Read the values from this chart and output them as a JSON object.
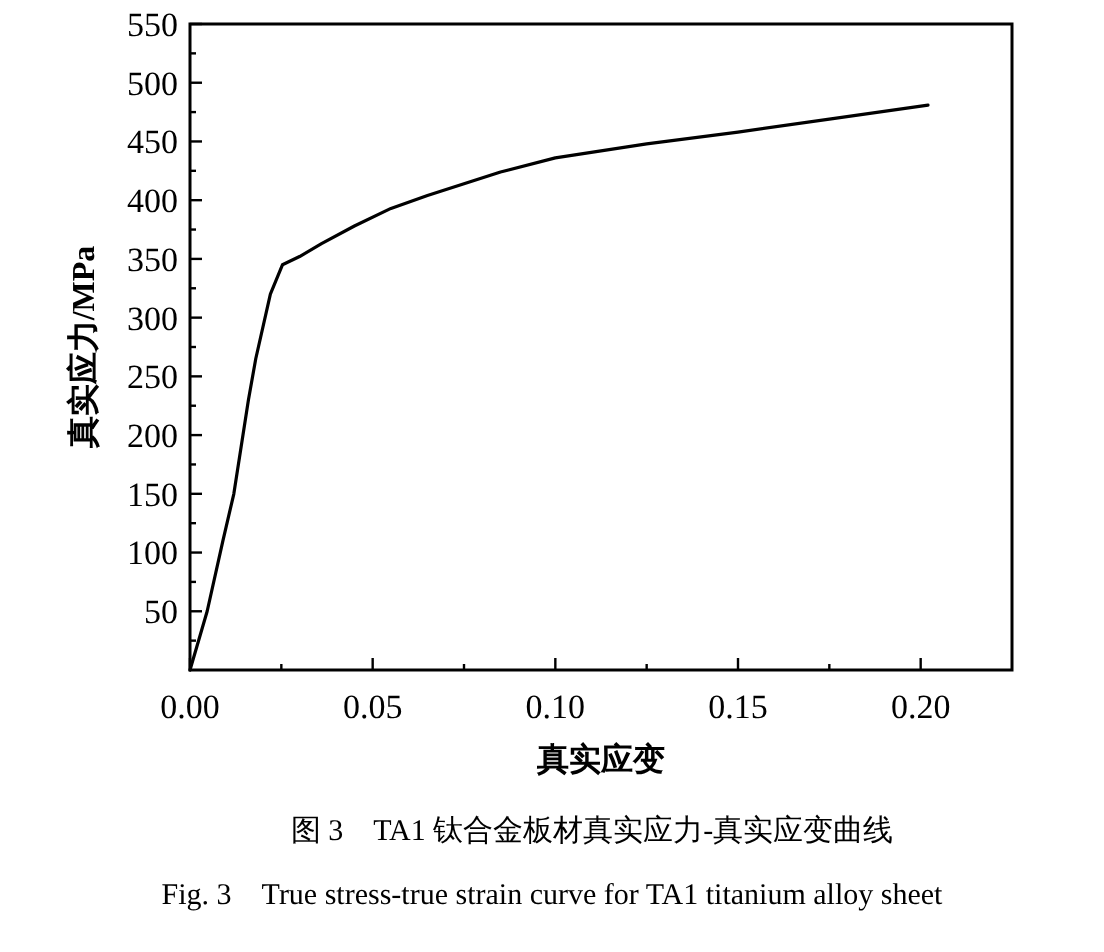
{
  "chart_data": {
    "type": "line",
    "title": "图 3　TA1 钛合金板材真实应力-真实应变曲线",
    "subtitle": "Fig. 3　True stress-true strain curve for TA1 titanium alloy sheet",
    "xlabel": "真实应变",
    "ylabel": "真实应力/MPa",
    "x": [
      0,
      0.0047,
      0.009,
      0.012,
      0.016,
      0.018,
      0.022,
      0.0253,
      0.03,
      0.036,
      0.045,
      0.055,
      0.065,
      0.075,
      0.085,
      0.1,
      0.125,
      0.15,
      0.175,
      0.202
    ],
    "series": [
      {
        "color": "#000000",
        "values": [
          0,
          50,
          110,
          150,
          230,
          265,
          320,
          345,
          352,
          363,
          378,
          393,
          404,
          414,
          424,
          436,
          448,
          458,
          469,
          481
        ]
      }
    ],
    "xlim": [
      0,
      0.225
    ],
    "xticks": [
      {
        "value": 0,
        "label": "0.00"
      },
      {
        "value": 0.025,
        "label": null
      },
      {
        "value": 0.05,
        "label": "0.05"
      },
      {
        "value": 0.075,
        "label": null
      },
      {
        "value": 0.1,
        "label": "0.10"
      },
      {
        "value": 0.125,
        "label": null
      },
      {
        "value": 0.15,
        "label": "0.15"
      },
      {
        "value": 0.175,
        "label": null
      },
      {
        "value": 0.2,
        "label": "0.20"
      }
    ],
    "ylim": [
      0,
      550
    ],
    "yticks": [
      {
        "value": 25,
        "label": null
      },
      50,
      {
        "value": 75,
        "label": null
      },
      100,
      {
        "value": 125,
        "label": null
      },
      150,
      {
        "value": 175,
        "label": null
      },
      200,
      {
        "value": 225,
        "label": null
      },
      250,
      {
        "value": 275,
        "label": null
      },
      300,
      {
        "value": 325,
        "label": null
      },
      350,
      {
        "value": 375,
        "label": null
      },
      400,
      {
        "value": 425,
        "label": null
      },
      450,
      {
        "value": 475,
        "label": null
      },
      500,
      {
        "value": 525,
        "label": null
      },
      550
    ],
    "grid": false,
    "marker": "none",
    "line_style": "solid"
  }
}
